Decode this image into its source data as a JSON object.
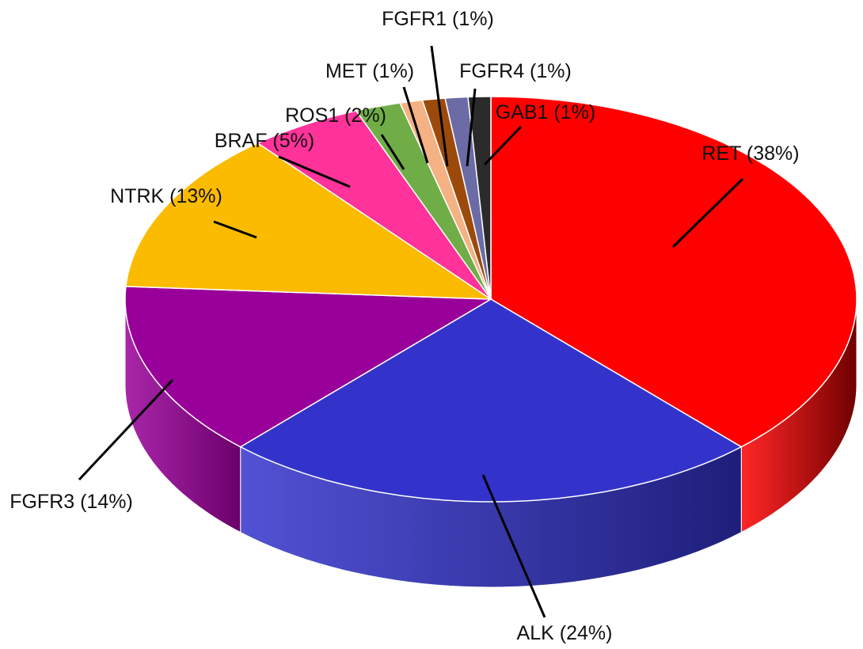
{
  "chart_data": {
    "type": "pie",
    "style": "3d",
    "title": "",
    "slices": [
      {
        "label": "RET (38%)",
        "name": "RET",
        "value": 38,
        "color": "#ff0000",
        "side_color": "#6e0000"
      },
      {
        "label": "ALK (24%)",
        "name": "ALK",
        "value": 24,
        "color": "#3333cc",
        "side_color": "#1e1e7a"
      },
      {
        "label": "FGFR3 (14%)",
        "name": "FGFR3",
        "value": 14,
        "color": "#990099",
        "side_color": "#6b006b"
      },
      {
        "label": "NTRK (13%)",
        "name": "NTRK",
        "value": 13,
        "color": "#fbbb00",
        "side_color": "#a87d00"
      },
      {
        "label": "BRAF (5%)",
        "name": "BRAF",
        "value": 5,
        "color": "#ff3399",
        "side_color": "#a0205f"
      },
      {
        "label": "ROS1 (2%)",
        "name": "ROS1",
        "value": 2,
        "color": "#70ad47",
        "side_color": "#4a742f"
      },
      {
        "label": "MET (1%)",
        "name": "MET",
        "value": 1,
        "color": "#f4b183",
        "side_color": "#a87a5a"
      },
      {
        "label": "FGFR1 (1%)",
        "name": "FGFR1",
        "value": 1,
        "color": "#9c4a0c",
        "side_color": "#5e2c07"
      },
      {
        "label": "FGFR4 (1%)",
        "name": "FGFR4",
        "value": 1,
        "color": "#6b6ba6",
        "side_color": "#42426a"
      },
      {
        "label": "GAB1 (1%)",
        "name": "GAB1",
        "value": 1,
        "color": "#2b2b2b",
        "side_color": "#111111"
      }
    ]
  }
}
